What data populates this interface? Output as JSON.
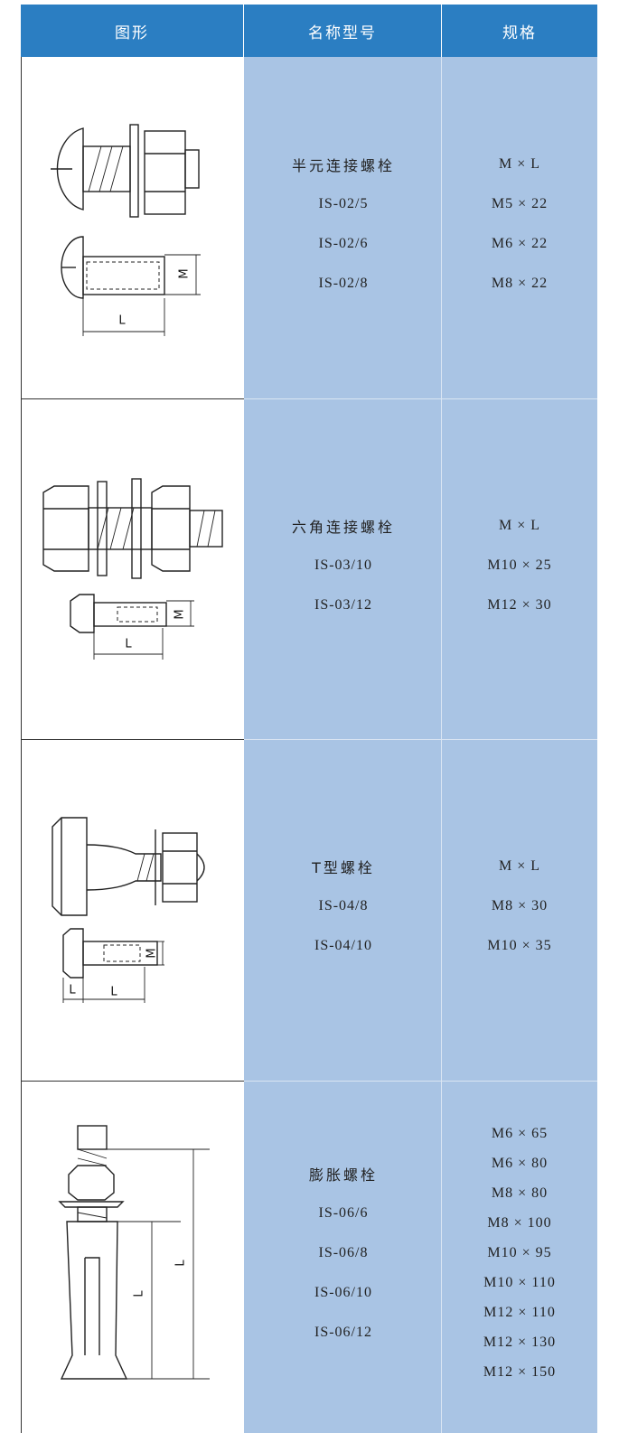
{
  "table": {
    "header": [
      "图形",
      "名称型号",
      "规格"
    ],
    "rows": [
      {
        "name": "半元连接螺栓",
        "models": [
          "IS-02/5",
          "IS-02/6",
          "IS-02/8"
        ],
        "specs": [
          "M × L",
          "M5 × 22",
          "M6 × 22",
          "M8 × 22"
        ],
        "figure_labels": [
          "M",
          "L"
        ]
      },
      {
        "name": "六角连接螺栓",
        "models": [
          "IS-03/10",
          "IS-03/12"
        ],
        "specs": [
          "M × L",
          "M10 × 25",
          "M12 × 30"
        ],
        "figure_labels": [
          "M",
          "L"
        ]
      },
      {
        "name": "T型螺栓",
        "models": [
          "IS-04/8",
          "IS-04/10"
        ],
        "specs": [
          "M × L",
          "M8 × 30",
          "M10 × 35"
        ],
        "figure_labels": [
          "M",
          "L",
          "L"
        ]
      },
      {
        "name": "膨胀螺栓",
        "models": [
          "IS-06/6",
          "IS-06/8",
          "IS-06/10",
          "IS-06/12"
        ],
        "specs": [
          "M6 × 65",
          "M6 × 80",
          "M8 × 80",
          "M8 × 100",
          "M10 × 95",
          "M10 × 110",
          "M12 × 110",
          "M12 × 130",
          "M12 × 150"
        ],
        "figure_labels": [
          "L",
          "L"
        ]
      }
    ]
  }
}
